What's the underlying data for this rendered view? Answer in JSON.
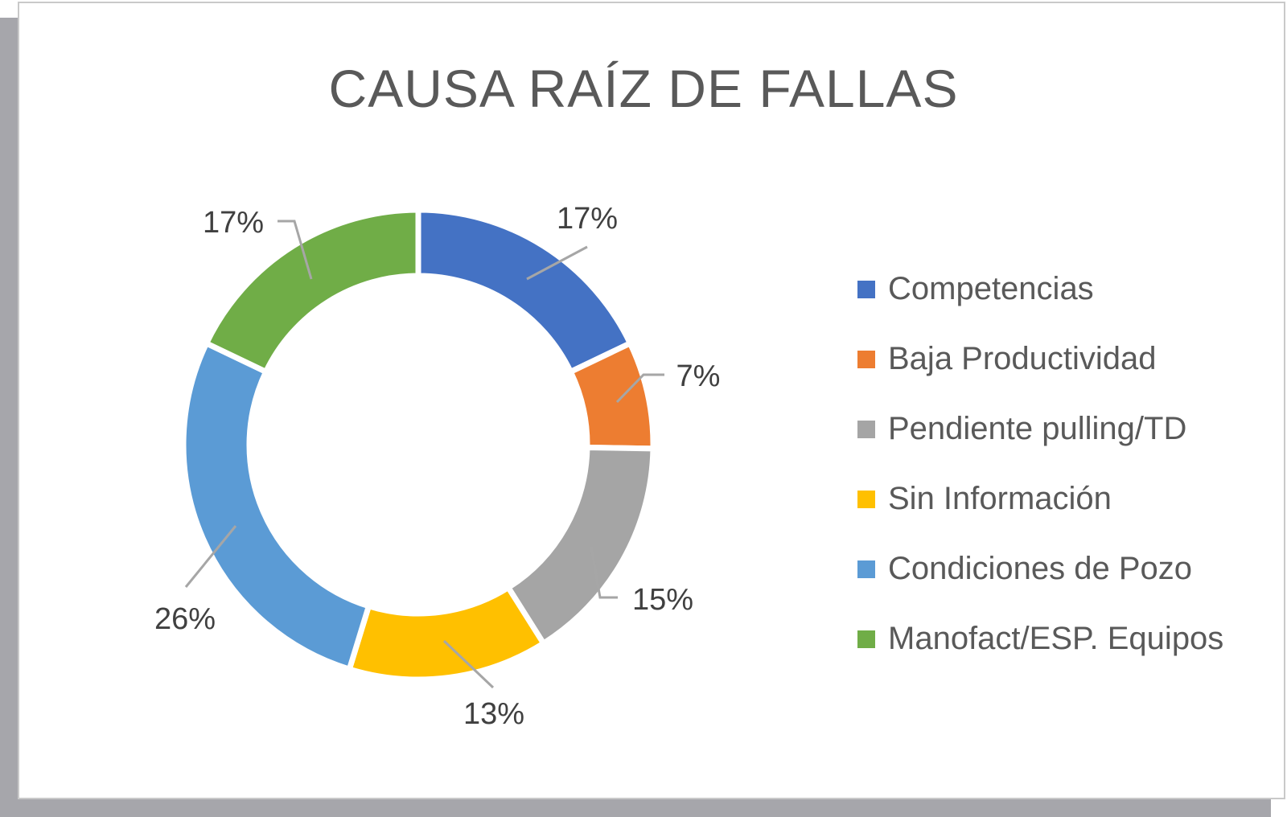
{
  "chart_data": {
    "type": "pie",
    "variant": "donut",
    "title": "CAUSA RAÍZ DE FALLAS",
    "categories": [
      "Competencias",
      "Baja Productividad",
      "Pendiente pulling/TD",
      "Sin Información",
      "Condiciones de Pozo",
      "Manofact/ESP. Equipos"
    ],
    "values": [
      17,
      7,
      15,
      13,
      26,
      17
    ],
    "data_labels": [
      "17%",
      "7%",
      "15%",
      "13%",
      "26%",
      "17%"
    ],
    "colors": [
      "#4472C4",
      "#ED7D31",
      "#A5A5A5",
      "#FFC000",
      "#5B9BD5",
      "#70AD47"
    ],
    "legend_position": "right",
    "grid": false
  }
}
